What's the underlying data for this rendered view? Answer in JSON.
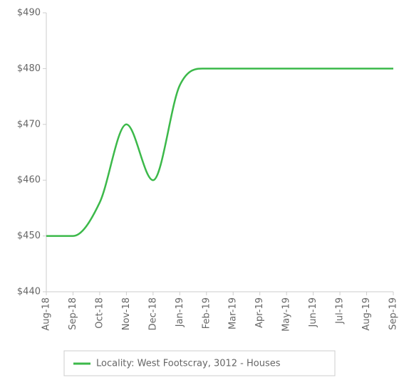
{
  "chart_data": {
    "type": "line",
    "categories": [
      "Aug-18",
      "Sep-18",
      "Oct-18",
      "Nov-18",
      "Dec-18",
      "Jan-19",
      "Feb-19",
      "Mar-19",
      "Apr-19",
      "May-19",
      "Jun-19",
      "Jul-19",
      "Aug-19",
      "Sep-19"
    ],
    "series": [
      {
        "name": "Locality: West Footscray, 3012 - Houses",
        "color": "#3cb94a",
        "values": [
          450,
          450,
          456,
          470,
          460,
          477,
          480,
          480,
          480,
          480,
          480,
          480,
          480,
          480
        ]
      }
    ],
    "ylim": [
      440,
      490
    ],
    "yticks": [
      {
        "value": 440,
        "label": "$440"
      },
      {
        "value": 450,
        "label": "$450"
      },
      {
        "value": 460,
        "label": "$460"
      },
      {
        "value": 470,
        "label": "$470"
      },
      {
        "value": 480,
        "label": "$480"
      },
      {
        "value": 490,
        "label": "$490"
      }
    ],
    "legend": "bottom"
  }
}
